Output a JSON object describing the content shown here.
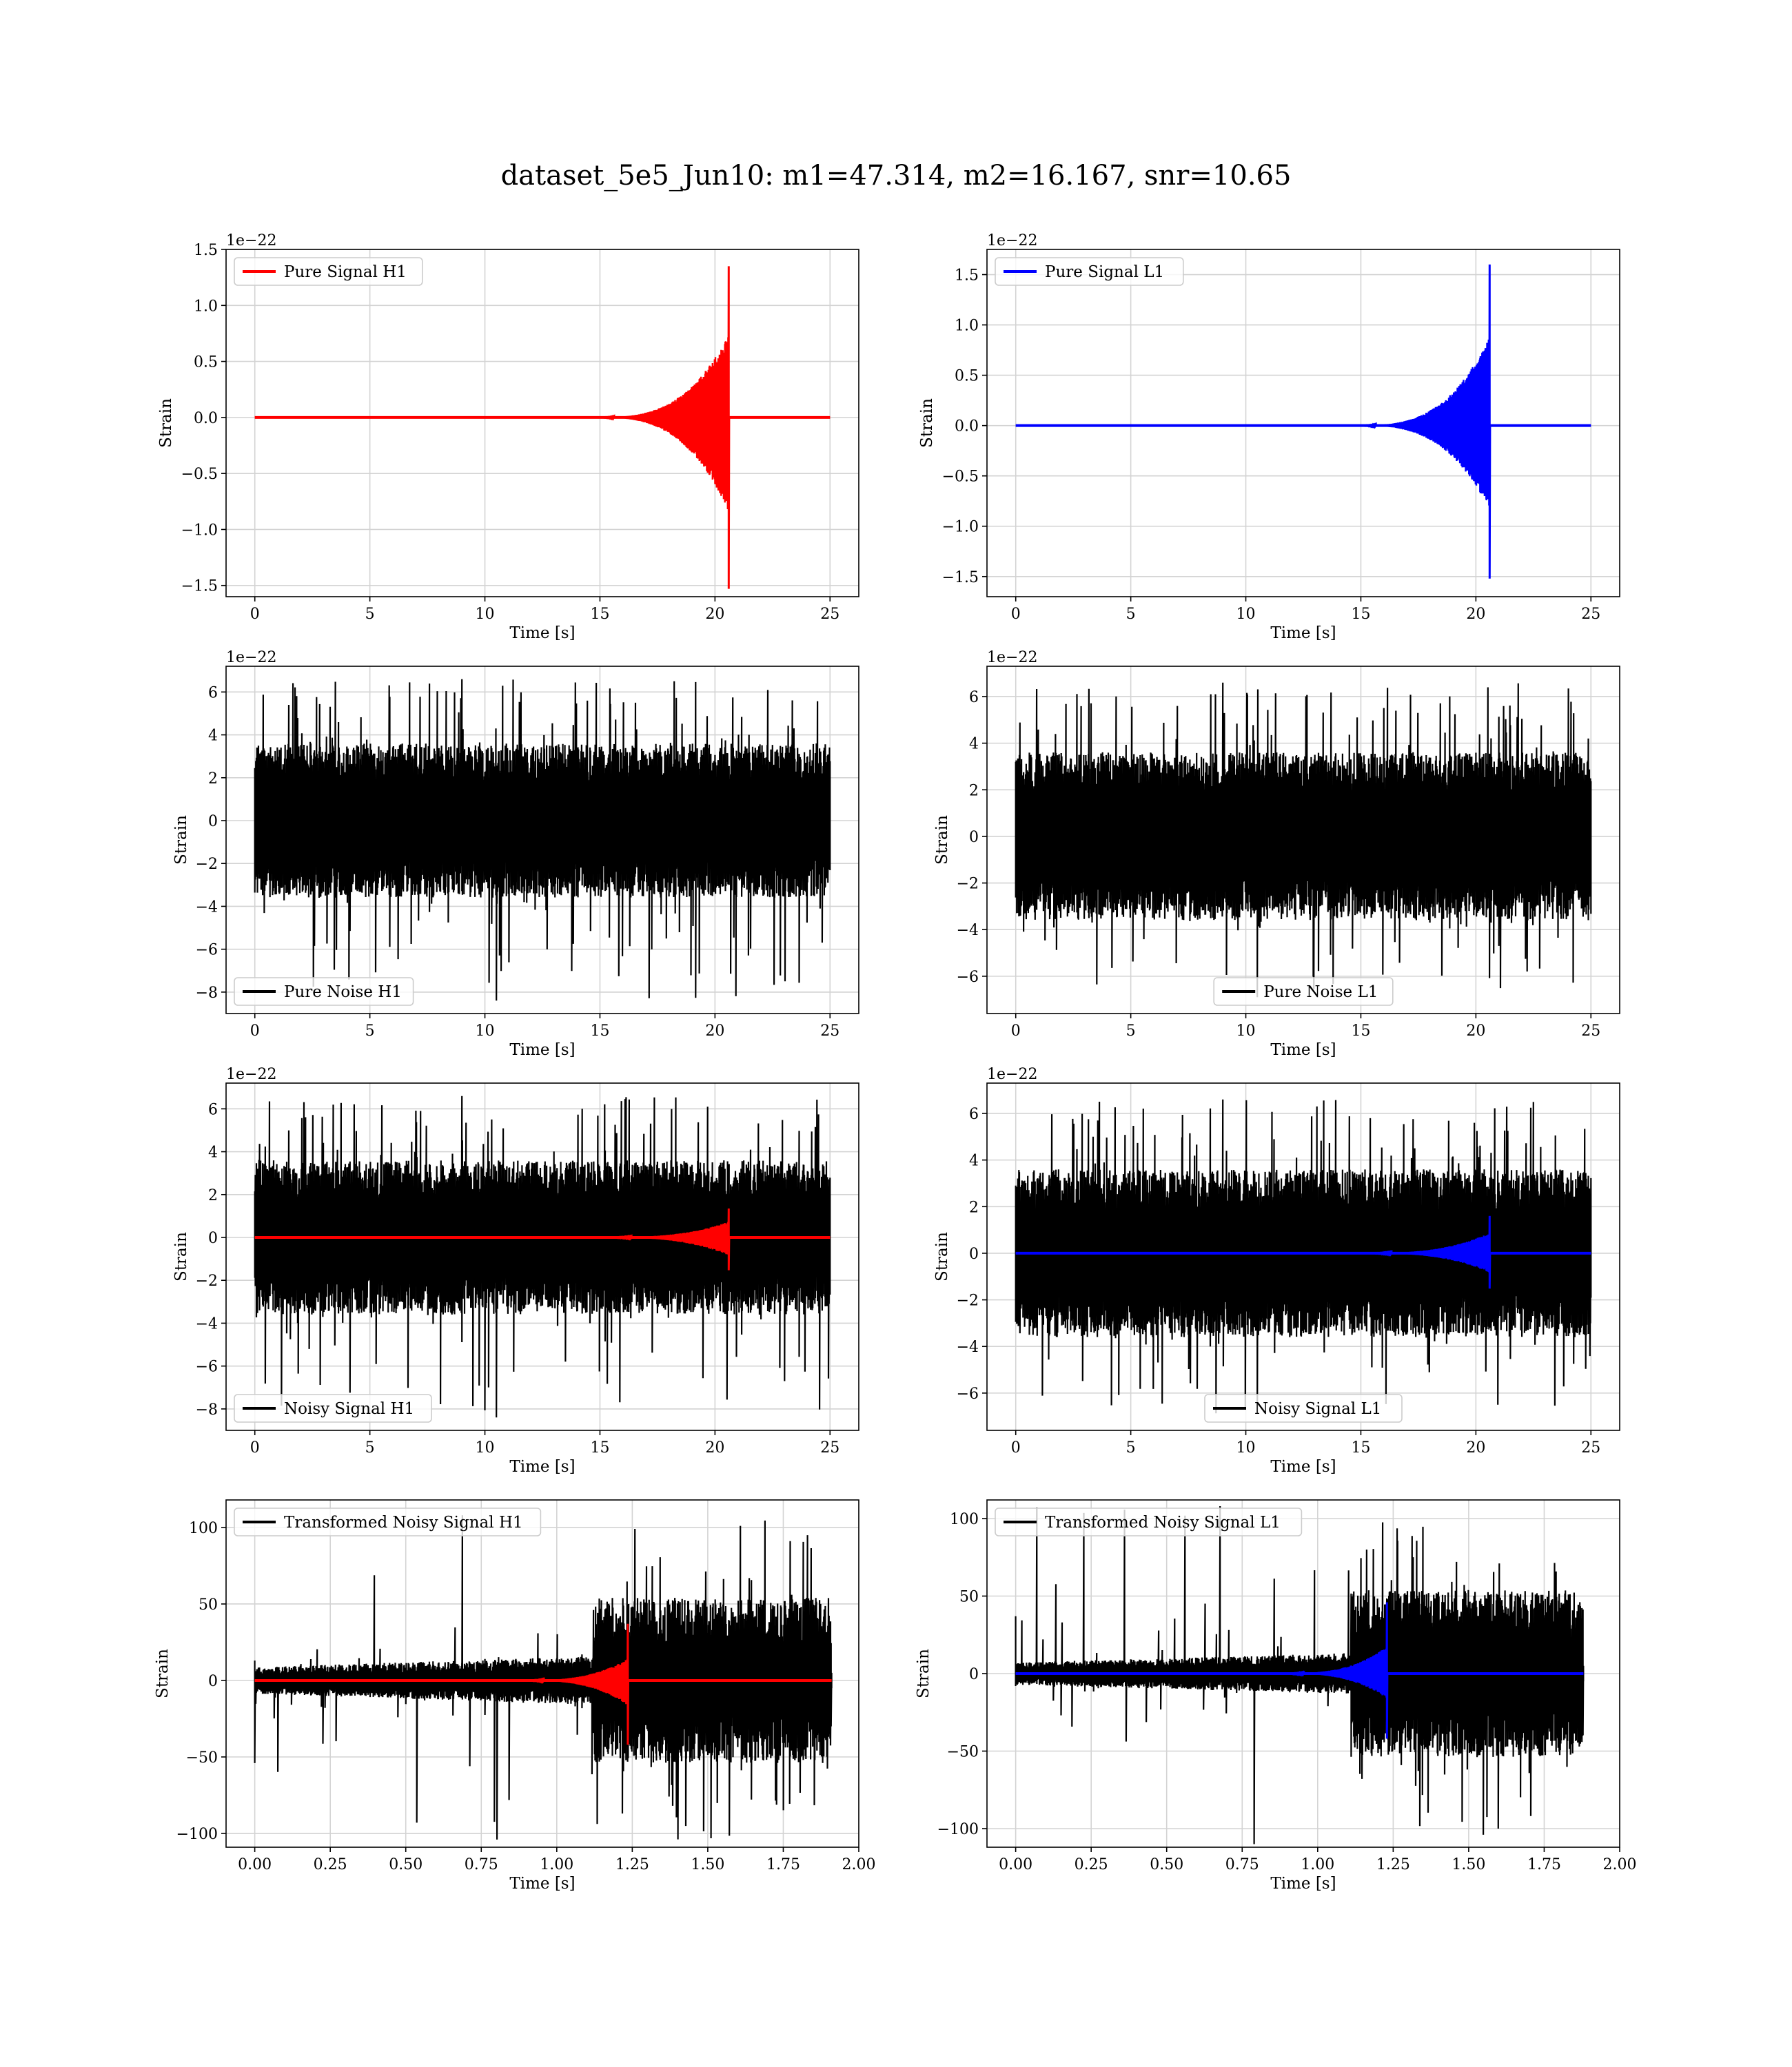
{
  "figure": {
    "title": "dataset_5e5_Jun10: m1=47.314, m2=16.167, snr=10.65"
  },
  "colors": {
    "red": "#ff0000",
    "blue": "#0000ff",
    "black": "#000000",
    "grid": "#d3d3d3"
  },
  "chart_data": [
    {
      "type": "line",
      "row": 0,
      "col": 0,
      "xlabel": "Time [s]",
      "ylabel": "Strain",
      "offset_text": "1e−22",
      "xlim": [
        -1.25,
        26.25
      ],
      "ylim": [
        -1.6,
        1.5
      ],
      "xticks": [
        0,
        5,
        10,
        15,
        20,
        25
      ],
      "xtick_labels": [
        "0",
        "5",
        "10",
        "15",
        "20",
        "25"
      ],
      "yticks": [
        -1.5,
        -1.0,
        -0.5,
        0.0,
        0.5,
        1.0,
        1.5
      ],
      "ytick_labels": [
        "−1.5",
        "−1.0",
        "−0.5",
        "0.0",
        "0.5",
        "1.0",
        "1.5"
      ],
      "grid": true,
      "legend": {
        "position": "upper-left",
        "entries": [
          {
            "name": "Pure Signal H1",
            "color": "#ff0000"
          }
        ]
      },
      "series": [
        {
          "name": "Pure Signal H1",
          "color": "#ff0000",
          "kind": "chirp",
          "t_start": 0,
          "t_end": 25,
          "t_merger": 20.6,
          "t_onset": 14.5,
          "pos_peak": 1.35,
          "neg_peak": -1.53,
          "early_amp": 0.5
        }
      ]
    },
    {
      "type": "line",
      "row": 0,
      "col": 1,
      "xlabel": "Time [s]",
      "ylabel": "Strain",
      "offset_text": "1e−22",
      "xlim": [
        -1.25,
        26.25
      ],
      "ylim": [
        -1.7,
        1.75
      ],
      "xticks": [
        0,
        5,
        10,
        15,
        20,
        25
      ],
      "xtick_labels": [
        "0",
        "5",
        "10",
        "15",
        "20",
        "25"
      ],
      "yticks": [
        -1.5,
        -1.0,
        -0.5,
        0.0,
        0.5,
        1.0,
        1.5
      ],
      "ytick_labels": [
        "−1.5",
        "−1.0",
        "−0.5",
        "0.0",
        "0.5",
        "1.0",
        "1.5"
      ],
      "grid": true,
      "legend": {
        "position": "upper-left",
        "entries": [
          {
            "name": "Pure Signal L1",
            "color": "#0000ff"
          }
        ]
      },
      "series": [
        {
          "name": "Pure Signal L1",
          "color": "#0000ff",
          "kind": "chirp",
          "t_start": 0,
          "t_end": 25,
          "t_merger": 20.6,
          "t_onset": 14.5,
          "pos_peak": 1.6,
          "neg_peak": -1.52,
          "early_amp": 0.5
        }
      ]
    },
    {
      "type": "line",
      "row": 1,
      "col": 0,
      "xlabel": "Time [s]",
      "ylabel": "Strain",
      "offset_text": "1e−22",
      "xlim": [
        -1.25,
        26.25
      ],
      "ylim": [
        -9.0,
        7.2
      ],
      "xticks": [
        0,
        5,
        10,
        15,
        20,
        25
      ],
      "xtick_labels": [
        "0",
        "5",
        "10",
        "15",
        "20",
        "25"
      ],
      "yticks": [
        -8,
        -6,
        -4,
        -2,
        0,
        2,
        4,
        6
      ],
      "ytick_labels": [
        "−8",
        "−6",
        "−4",
        "−2",
        "0",
        "2",
        "4",
        "6"
      ],
      "grid": true,
      "legend": {
        "position": "lower-left",
        "entries": [
          {
            "name": "Pure Noise H1",
            "color": "#000000"
          }
        ]
      },
      "series": [
        {
          "name": "Pure Noise H1",
          "color": "#000000",
          "kind": "noise",
          "t_start": 0,
          "t_end": 25,
          "core": 3.0,
          "spike_max": 6.6,
          "spike_min": -8.4
        }
      ]
    },
    {
      "type": "line",
      "row": 1,
      "col": 1,
      "xlabel": "Time [s]",
      "ylabel": "Strain",
      "offset_text": "1e−22",
      "xlim": [
        -1.25,
        26.25
      ],
      "ylim": [
        -7.6,
        7.3
      ],
      "xticks": [
        0,
        5,
        10,
        15,
        20,
        25
      ],
      "xtick_labels": [
        "0",
        "5",
        "10",
        "15",
        "20",
        "25"
      ],
      "yticks": [
        -6,
        -4,
        -2,
        0,
        2,
        4,
        6
      ],
      "ytick_labels": [
        "−6",
        "−4",
        "−2",
        "0",
        "2",
        "4",
        "6"
      ],
      "grid": true,
      "legend": {
        "position": "lower-center",
        "entries": [
          {
            "name": "Pure Noise L1",
            "color": "#000000"
          }
        ]
      },
      "series": [
        {
          "name": "Pure Noise L1",
          "color": "#000000",
          "kind": "noise",
          "t_start": 0,
          "t_end": 25,
          "core": 3.0,
          "spike_max": 6.6,
          "spike_min": -6.9
        }
      ]
    },
    {
      "type": "line",
      "row": 2,
      "col": 0,
      "xlabel": "Time [s]",
      "ylabel": "Strain",
      "offset_text": "1e−22",
      "xlim": [
        -1.25,
        26.25
      ],
      "ylim": [
        -9.0,
        7.2
      ],
      "xticks": [
        0,
        5,
        10,
        15,
        20,
        25
      ],
      "xtick_labels": [
        "0",
        "5",
        "10",
        "15",
        "20",
        "25"
      ],
      "yticks": [
        -8,
        -6,
        -4,
        -2,
        0,
        2,
        4,
        6
      ],
      "ytick_labels": [
        "−8",
        "−6",
        "−4",
        "−2",
        "0",
        "2",
        "4",
        "6"
      ],
      "grid": true,
      "legend": {
        "position": "lower-left",
        "entries": [
          {
            "name": "Noisy Signal H1",
            "color": "#000000"
          }
        ]
      },
      "series": [
        {
          "name": "Noisy Signal H1",
          "color": "#000000",
          "kind": "noise",
          "t_start": 0,
          "t_end": 25,
          "core": 3.0,
          "spike_max": 6.6,
          "spike_min": -8.4
        },
        {
          "color": "#ff0000",
          "kind": "chirp",
          "t_start": 0,
          "t_end": 25,
          "t_merger": 20.6,
          "t_onset": 14.5,
          "pos_peak": 1.35,
          "neg_peak": -1.53,
          "early_amp": 0.5
        }
      ]
    },
    {
      "type": "line",
      "row": 2,
      "col": 1,
      "xlabel": "Time [s]",
      "ylabel": "Strain",
      "offset_text": "1e−22",
      "xlim": [
        -1.25,
        26.25
      ],
      "ylim": [
        -7.6,
        7.3
      ],
      "xticks": [
        0,
        5,
        10,
        15,
        20,
        25
      ],
      "xtick_labels": [
        "0",
        "5",
        "10",
        "15",
        "20",
        "25"
      ],
      "yticks": [
        -6,
        -4,
        -2,
        0,
        2,
        4,
        6
      ],
      "ytick_labels": [
        "−6",
        "−4",
        "−2",
        "0",
        "2",
        "4",
        "6"
      ],
      "grid": true,
      "legend": {
        "position": "lower-center",
        "entries": [
          {
            "name": "Noisy Signal L1",
            "color": "#000000"
          }
        ]
      },
      "series": [
        {
          "name": "Noisy Signal L1",
          "color": "#000000",
          "kind": "noise",
          "t_start": 0,
          "t_end": 25,
          "core": 3.0,
          "spike_max": 6.6,
          "spike_min": -6.9
        },
        {
          "color": "#0000ff",
          "kind": "chirp",
          "t_start": 0,
          "t_end": 25,
          "t_merger": 20.6,
          "t_onset": 14.5,
          "pos_peak": 1.6,
          "neg_peak": -1.52,
          "early_amp": 0.5
        }
      ]
    },
    {
      "type": "line",
      "row": 3,
      "col": 0,
      "xlabel": "Time [s]",
      "ylabel": "Strain",
      "offset_text": "",
      "xlim": [
        -0.095,
        2.0
      ],
      "ylim": [
        -109,
        118
      ],
      "xticks": [
        0.0,
        0.25,
        0.5,
        0.75,
        1.0,
        1.25,
        1.5,
        1.75,
        2.0
      ],
      "xtick_labels": [
        "0.00",
        "0.25",
        "0.50",
        "0.75",
        "1.00",
        "1.25",
        "1.50",
        "1.75",
        "2.00"
      ],
      "yticks": [
        -100,
        -50,
        0,
        50,
        100
      ],
      "ytick_labels": [
        "−100",
        "−50",
        "0",
        "50",
        "100"
      ],
      "grid": true,
      "legend": {
        "position": "upper-left",
        "entries": [
          {
            "name": "Transformed Noisy Signal H1",
            "color": "#000000"
          }
        ]
      },
      "series": [
        {
          "name": "Transformed Noisy Signal H1",
          "color": "#000000",
          "kind": "whitened",
          "t_start": 0,
          "t_end": 1.91,
          "t_jump": 1.12,
          "low_amp": 12,
          "high_amp": 45,
          "spike_max": 108,
          "spike_min": -104,
          "start_spike_up": 13,
          "start_spike_down": -54
        },
        {
          "color": "#ff0000",
          "kind": "chirp",
          "t_start": 0,
          "t_end": 1.91,
          "t_merger": 1.235,
          "t_onset": 0.85,
          "pos_peak": 37,
          "neg_peak": -42,
          "early_amp": 0.35
        }
      ]
    },
    {
      "type": "line",
      "row": 3,
      "col": 1,
      "xlabel": "Time [s]",
      "ylabel": "Strain",
      "offset_text": "",
      "xlim": [
        -0.095,
        2.0
      ],
      "ylim": [
        -112,
        112
      ],
      "xticks": [
        0.0,
        0.25,
        0.5,
        0.75,
        1.0,
        1.25,
        1.5,
        1.75,
        2.0
      ],
      "xtick_labels": [
        "0.00",
        "0.25",
        "0.50",
        "0.75",
        "1.00",
        "1.25",
        "1.50",
        "1.75",
        "2.00"
      ],
      "yticks": [
        -100,
        -50,
        0,
        50,
        100
      ],
      "ytick_labels": [
        "−100",
        "−50",
        "0",
        "50",
        "100"
      ],
      "grid": true,
      "legend": {
        "position": "upper-left",
        "entries": [
          {
            "name": "Transformed Noisy Signal L1",
            "color": "#000000"
          }
        ]
      },
      "series": [
        {
          "name": "Transformed Noisy Signal L1",
          "color": "#000000",
          "kind": "whitened",
          "t_start": 0,
          "t_end": 1.88,
          "t_jump": 1.11,
          "low_amp": 10,
          "high_amp": 45,
          "spike_max": 108,
          "spike_min": -110,
          "start_spike_up": 37,
          "start_spike_down": -8
        },
        {
          "color": "#0000ff",
          "kind": "chirp",
          "t_start": 0,
          "t_end": 1.88,
          "t_merger": 1.23,
          "t_onset": 0.85,
          "pos_peak": 46,
          "neg_peak": -42,
          "early_amp": 0.35
        }
      ]
    }
  ]
}
